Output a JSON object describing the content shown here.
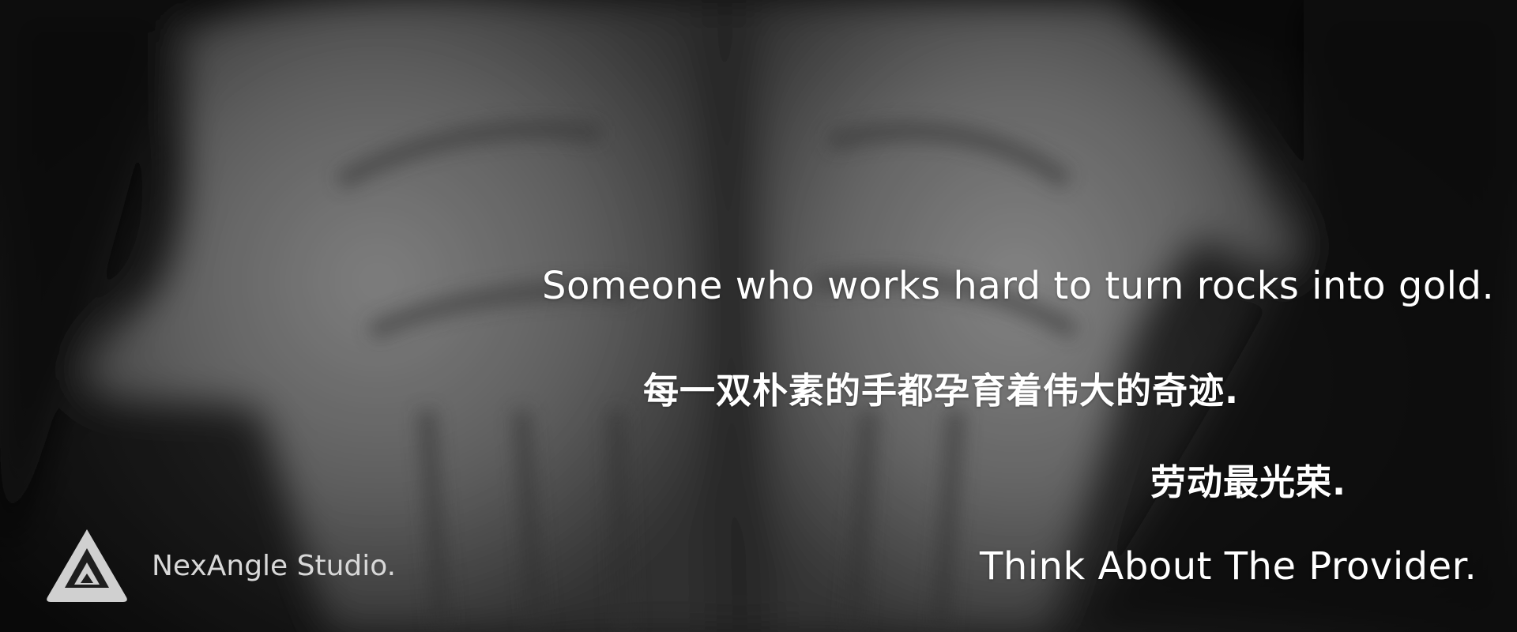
{
  "hero": {
    "line_1": "Someone who works hard to turn rocks into gold.",
    "line_2": "每一双朴素的手都孕育着伟大的奇迹.",
    "line_3": "劳动最光荣.",
    "line_4": "Think About The Provider."
  },
  "brand": {
    "name": "NexAngle Studio.",
    "logo_icon": "triangle-logo-icon"
  },
  "colors": {
    "text": "#ffffff",
    "brand_text": "#d8d8d8",
    "background": "#111111"
  }
}
